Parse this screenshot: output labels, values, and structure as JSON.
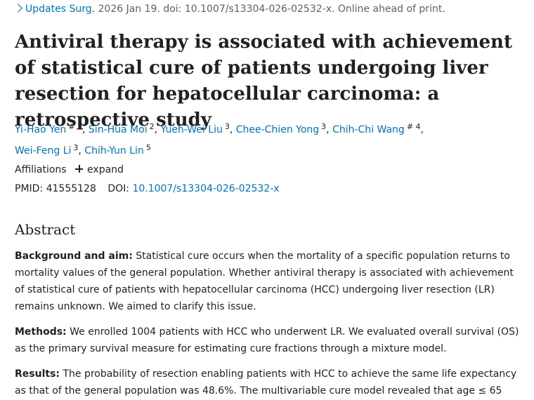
{
  "citation": {
    "journal": "Updates Surg.",
    "details": "2026 Jan 19. doi: 10.1007/s13304-026-02532-x. Online ahead of print."
  },
  "article": {
    "title": "Antiviral therapy is associated with achievement of statistical cure of patients undergoing liver resection for hepatocellular carcinoma: a retrospective study"
  },
  "authors": [
    {
      "name": "Yi-Hao Yen",
      "sup": "# 1",
      "sep": ", "
    },
    {
      "name": "Sin-Hua Moi",
      "sup": "2",
      "sep": ", "
    },
    {
      "name": "Yueh-Wei Liu",
      "sup": "3",
      "sep": ", "
    },
    {
      "name": "Chee-Chien Yong",
      "sup": "3",
      "sep": ", "
    },
    {
      "name": "Chih-Chi Wang",
      "sup": "# 4",
      "sep": ","
    },
    {
      "name": "Wei-Feng Li",
      "sup": "3",
      "sep": ", "
    },
    {
      "name": "Chih-Yun Lin",
      "sup": "5",
      "sep": ""
    }
  ],
  "affiliations": {
    "label": "Affiliations",
    "toggle_label": "expand"
  },
  "identifiers": {
    "pmid_label": "PMID:",
    "pmid": "41555128",
    "doi_label": "DOI:",
    "doi": "10.1007/s13304-026-02532-x"
  },
  "abstract": {
    "heading": "Abstract",
    "sections": [
      {
        "label": "Background and aim:",
        "text": "Statistical cure occurs when the mortality of a specific population returns to mortality values of the general population. Whether antiviral therapy is associated with achievement of statistical cure of patients with hepatocellular carcinoma (HCC) undergoing liver resection (LR) remains unknown. We aimed to clarify this issue."
      },
      {
        "label": "Methods:",
        "text": "We enrolled 1004 patients with HCC who underwent LR. We evaluated overall survival (OS) as the primary survival measure for estimating cure fractions through a mixture model."
      },
      {
        "label": "Results:",
        "text": "The probability of resection enabling patients with HCC to achieve the same life expectancy as that of the general population was 48.6%. The multivariable cure model revealed that age ≤ 65"
      }
    ]
  }
}
